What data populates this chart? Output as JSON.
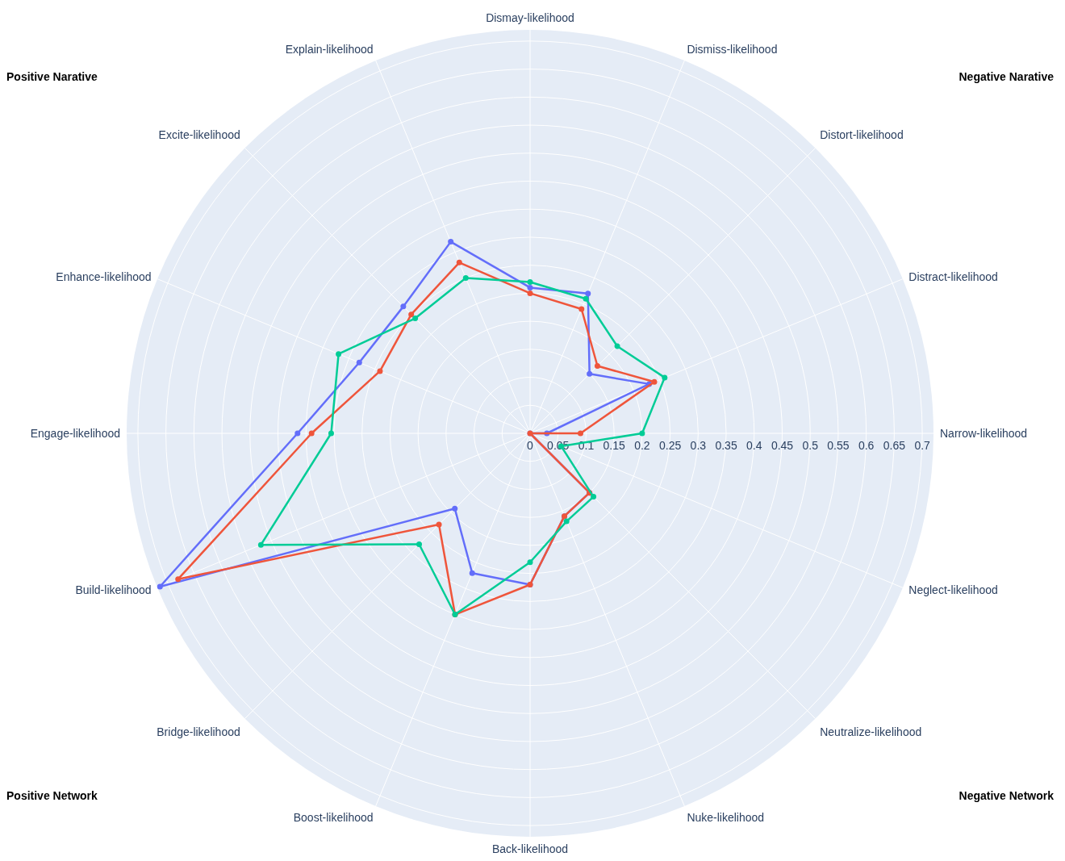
{
  "chart_data": {
    "type": "radar",
    "categories": [
      "Dismay-likelihood",
      "Dismiss-likelihood",
      "Distort-likelihood",
      "Distract-likelihood",
      "Narrow-likelihood",
      "Neglect-likelihood",
      "Neutralize-likelihood",
      "Nuke-likelihood",
      "Back-likelihood",
      "Boost-likelihood",
      "Bridge-likelihood",
      "Build-likelihood",
      "Engage-likelihood",
      "Enhance-likelihood",
      "Excite-likelihood",
      "Explain-likelihood"
    ],
    "series": [
      {
        "color": "#636efa",
        "values": [
          0.26,
          0.27,
          0.15,
          0.23,
          0.03,
          0,
          0.15,
          0.16,
          0.27,
          0.27,
          0.19,
          0.715,
          0.415,
          0.33,
          0.32,
          0.37
        ]
      },
      {
        "color": "#ef553b",
        "values": [
          0.25,
          0.24,
          0.17,
          0.24,
          0.09,
          0,
          0.15,
          0.16,
          0.27,
          0.35,
          0.23,
          0.68,
          0.39,
          0.29,
          0.3,
          0.33
        ]
      },
      {
        "color": "#00cc96",
        "values": [
          0.27,
          0.26,
          0.22,
          0.26,
          0.2,
          0.06,
          0.16,
          0.17,
          0.23,
          0.35,
          0.28,
          0.52,
          0.355,
          0.37,
          0.29,
          0.3
        ]
      }
    ],
    "ylim": [
      0,
      0.72
    ],
    "yticks": [
      0,
      0.05,
      0.1,
      0.15,
      0.2,
      0.25,
      0.3,
      0.35,
      0.4,
      0.45,
      0.5,
      0.55,
      0.6,
      0.65,
      0.7
    ],
    "grid": true,
    "marker": "circle",
    "line_style": "solid",
    "annotations": [
      "Positive Narative",
      "Negative Narative",
      "Positive Network",
      "Negative Network"
    ]
  }
}
